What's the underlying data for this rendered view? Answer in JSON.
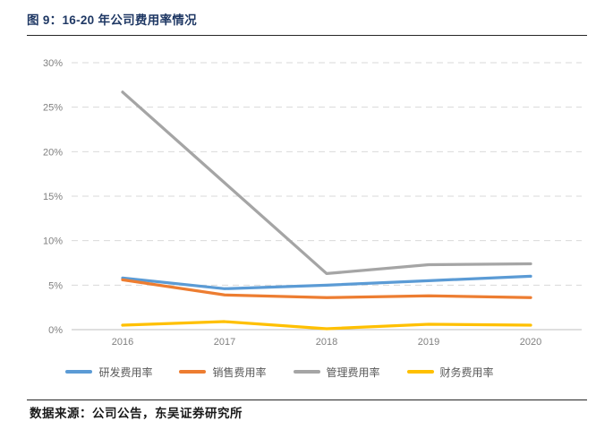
{
  "figure": {
    "title": "图 9：16-20 年公司费用率情况",
    "title_color": "#1F3864",
    "source": "数据来源：公司公告，东吴证券研究所"
  },
  "chart_data": {
    "type": "line",
    "title": "16-20 年公司费用率情况",
    "categories": [
      "2016",
      "2017",
      "2018",
      "2019",
      "2020"
    ],
    "series": [
      {
        "name": "研发费用率",
        "color": "#5B9BD5",
        "values": [
          5.8,
          4.6,
          5.0,
          5.5,
          6.0
        ]
      },
      {
        "name": "销售费用率",
        "color": "#ED7D31",
        "values": [
          5.6,
          3.9,
          3.6,
          3.8,
          3.6
        ]
      },
      {
        "name": "管理费用率",
        "color": "#A5A5A5",
        "values": [
          26.7,
          16.5,
          6.3,
          7.3,
          7.4
        ]
      },
      {
        "name": "财务费用率",
        "color": "#FFC000",
        "values": [
          0.5,
          0.9,
          0.1,
          0.6,
          0.5
        ]
      }
    ],
    "xlabel": "",
    "ylabel": "",
    "ylim": [
      0,
      30
    ],
    "ytick_step": 5,
    "ytick_labels": [
      "0%",
      "5%",
      "10%",
      "15%",
      "20%",
      "25%",
      "30%"
    ],
    "grid": "horizontal-dashed",
    "gridline_color": "#D9D9D9",
    "axis_line_color": "#BFBFBF",
    "tick_label_color": "#808080",
    "legend_position": "bottom"
  }
}
